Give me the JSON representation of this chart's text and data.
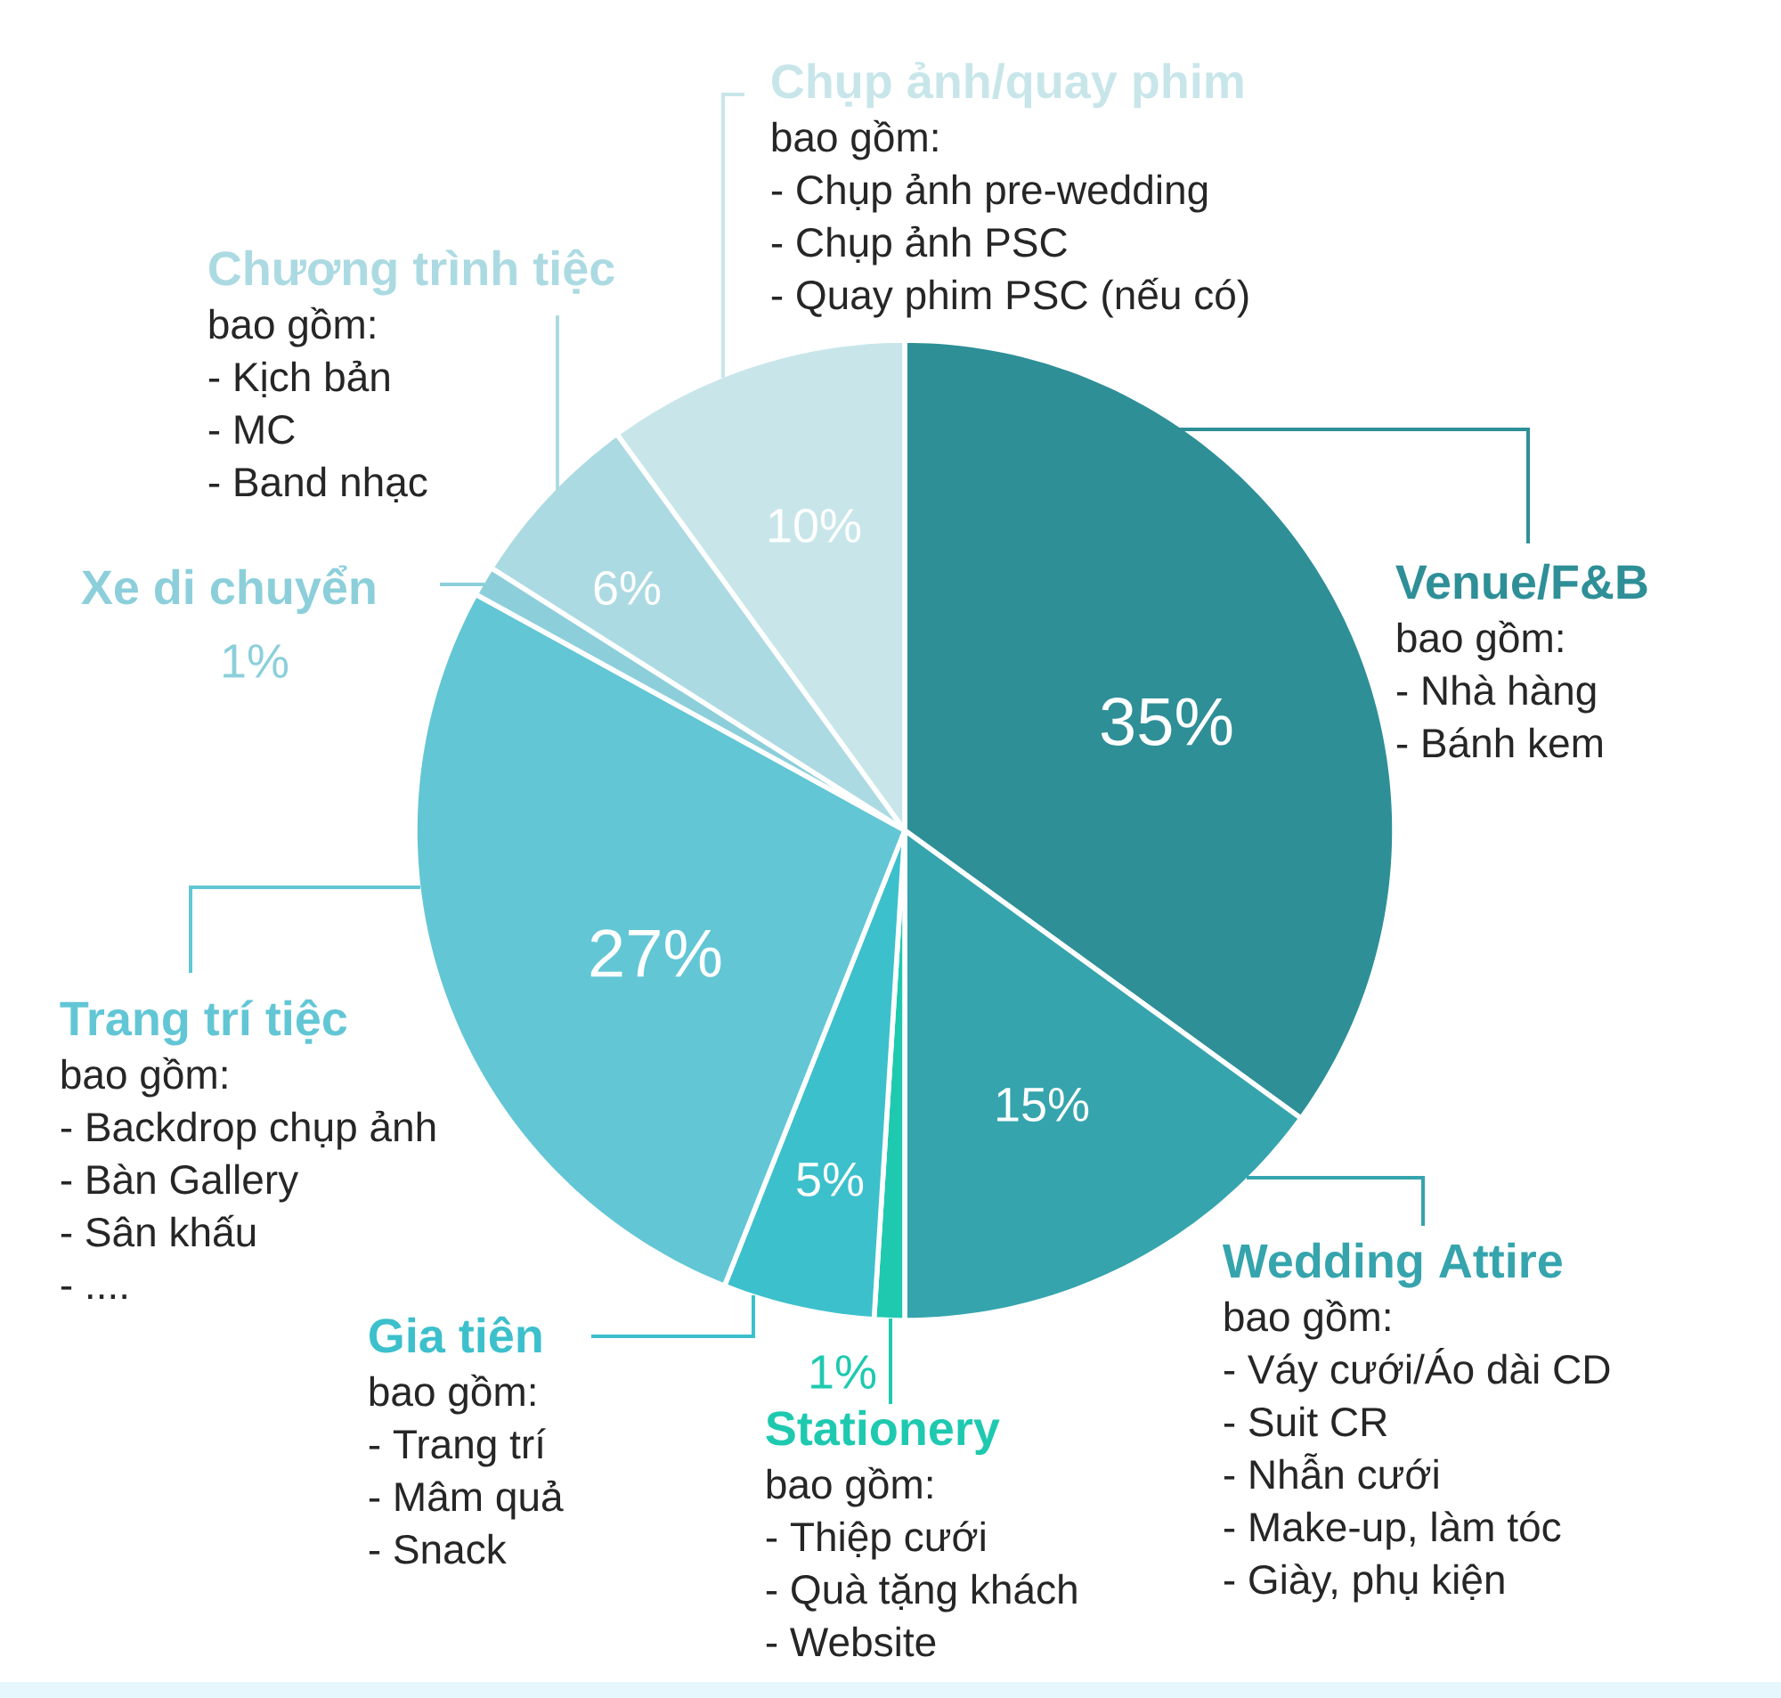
{
  "chart_data": {
    "type": "pie",
    "categories": [
      "Venue/F&B",
      "Wedding Attire",
      "Stationery",
      "Gia tiên",
      "Trang trí tiệc",
      "Xe di chuyển",
      "Chương trình tiệc",
      "Chụp ảnh/quay phim"
    ],
    "values": [
      35,
      15,
      1,
      5,
      27,
      1,
      6,
      10
    ],
    "colors": [
      "#2e8f97",
      "#35a4ad",
      "#1ec9b0",
      "#3cc0cc",
      "#62c6d5",
      "#8ccfdb",
      "#acdae2",
      "#c8e6ea"
    ],
    "value_labels": [
      "35%",
      "15%",
      "1%",
      "5%",
      "27%",
      "1%",
      "6%",
      "10%"
    ],
    "annotations": [
      "bao gồm:",
      "- Nhà hàng",
      "- Bánh kem",
      "bao gồm:",
      "- Váy cưới/Áo dài CD",
      "- Suit CR",
      "- Nhẫn cưới",
      "- Make-up, làm tóc",
      "- Giày, phụ kiện",
      "bao gồm:",
      "- Thiệp cưới",
      "- Quà tặng khách",
      "- Website",
      "bao gồm:",
      "- Trang trí",
      "- Mâm quả",
      "- Snack",
      "bao gồm:",
      "- Backdrop chụp ảnh",
      "- Bàn Gallery",
      "- Sân khấu",
      "- ....",
      "bao gồm:",
      "- Kịch bản",
      "- MC",
      "- Band nhạc",
      "bao gồm:",
      "- Chụp ảnh pre-wedding",
      "- Chụp ảnh PSC",
      "- Quay phim PSC (nếu có)"
    ]
  }
}
